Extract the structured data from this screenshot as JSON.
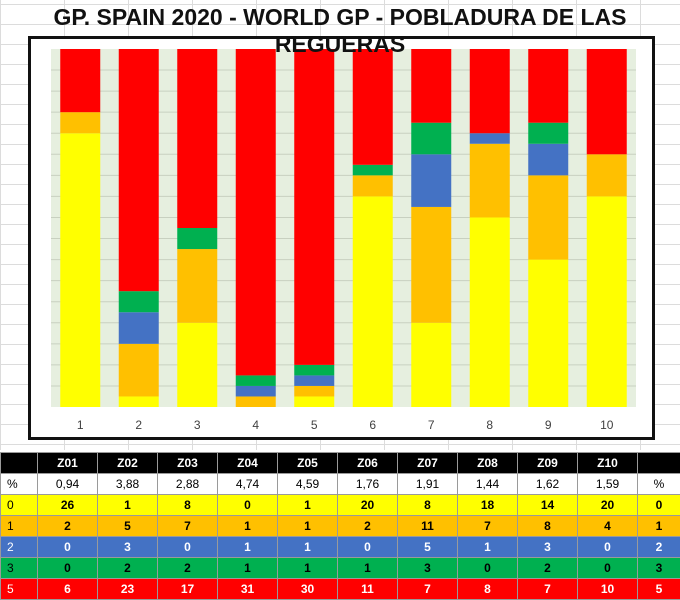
{
  "page": {
    "title": "GP. SPAIN 2020 - WORLD GP - POBLADURA DE LAS REGUERAS"
  },
  "colors": {
    "0": "#ffff00",
    "1": "#ffc000",
    "2": "#4472c4",
    "3": "#00b050",
    "5": "#ff0000",
    "plot_bg": "#e6efdf",
    "grid": "#c8d0c0"
  },
  "chart_data": {
    "type": "bar",
    "stacked": true,
    "normalized": true,
    "categories": [
      "1",
      "2",
      "3",
      "4",
      "5",
      "6",
      "7",
      "8",
      "9",
      "10"
    ],
    "series": [
      {
        "name": "0",
        "values": [
          26,
          1,
          8,
          0,
          1,
          20,
          8,
          18,
          14,
          20
        ]
      },
      {
        "name": "1",
        "values": [
          2,
          5,
          7,
          1,
          1,
          2,
          11,
          7,
          8,
          4
        ]
      },
      {
        "name": "2",
        "values": [
          0,
          3,
          0,
          1,
          1,
          0,
          5,
          1,
          3,
          0
        ]
      },
      {
        "name": "3",
        "values": [
          0,
          2,
          2,
          1,
          1,
          1,
          3,
          0,
          2,
          0
        ]
      },
      {
        "name": "5",
        "values": [
          6,
          23,
          17,
          31,
          30,
          11,
          7,
          8,
          7,
          10
        ]
      }
    ],
    "ylim": [
      0,
      1
    ],
    "grid": true,
    "legend": "none"
  },
  "table": {
    "corner": "",
    "zones": [
      "Z01",
      "Z02",
      "Z03",
      "Z04",
      "Z05",
      "Z06",
      "Z07",
      "Z08",
      "Z09",
      "Z10"
    ],
    "corner_right": "",
    "rows": [
      {
        "label": "%",
        "values": [
          "0,94",
          "3,88",
          "2,88",
          "4,74",
          "4,59",
          "1,76",
          "1,91",
          "1,44",
          "1,62",
          "1,59"
        ],
        "label_right": "%"
      },
      {
        "label": "0",
        "values": [
          "26",
          "1",
          "8",
          "0",
          "1",
          "20",
          "8",
          "18",
          "14",
          "20"
        ],
        "label_right": "0"
      },
      {
        "label": "1",
        "values": [
          "2",
          "5",
          "7",
          "1",
          "1",
          "2",
          "11",
          "7",
          "8",
          "4"
        ],
        "label_right": "1"
      },
      {
        "label": "2",
        "values": [
          "0",
          "3",
          "0",
          "1",
          "1",
          "0",
          "5",
          "1",
          "3",
          "0"
        ],
        "label_right": "2"
      },
      {
        "label": "3",
        "values": [
          "0",
          "2",
          "2",
          "1",
          "1",
          "1",
          "3",
          "0",
          "2",
          "0"
        ],
        "label_right": "3"
      },
      {
        "label": "5",
        "values": [
          "6",
          "23",
          "17",
          "31",
          "30",
          "11",
          "7",
          "8",
          "7",
          "10"
        ],
        "label_right": "5"
      }
    ]
  }
}
